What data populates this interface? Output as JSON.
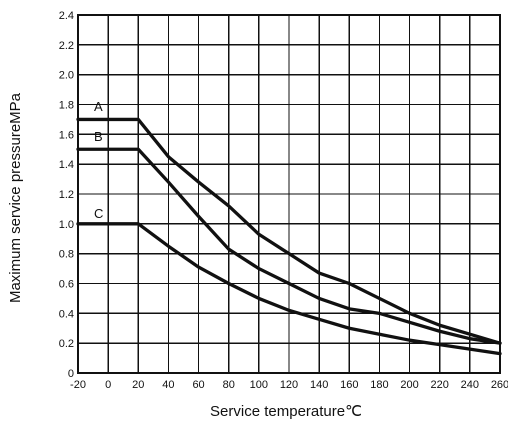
{
  "chart_data": {
    "type": "line",
    "title": "",
    "xlabel": "Service temperature℃",
    "ylabel": "Maximum service pressureMPa",
    "xlim": [
      -20,
      260
    ],
    "ylim": [
      0,
      2.4
    ],
    "x_ticks": [
      -20,
      0,
      20,
      40,
      60,
      80,
      100,
      120,
      140,
      160,
      180,
      200,
      220,
      240,
      260
    ],
    "y_ticks": [
      0,
      0.2,
      0.4,
      0.6,
      0.8,
      1.0,
      1.2,
      1.4,
      1.6,
      1.8,
      2.0,
      2.2,
      2.4
    ],
    "x_tick_labels": [
      "-20",
      "0",
      "20",
      "40",
      "60",
      "80",
      "100",
      "120",
      "140",
      "160",
      "180",
      "200",
      "220",
      "240",
      "260"
    ],
    "y_tick_labels": [
      "0",
      "0.2",
      "0.4",
      "0.6",
      "0.8",
      "1.0",
      "1.2",
      "1.4",
      "1.6",
      "1.8",
      "2.0",
      "2.2",
      "2.4"
    ],
    "grid": true,
    "series": [
      {
        "name": "A",
        "values": [
          [
            -20,
            1.7
          ],
          [
            20,
            1.7
          ],
          [
            40,
            1.45
          ],
          [
            60,
            1.28
          ],
          [
            80,
            1.12
          ],
          [
            100,
            0.93
          ],
          [
            120,
            0.8
          ],
          [
            140,
            0.67
          ],
          [
            160,
            0.6
          ],
          [
            180,
            0.5
          ],
          [
            200,
            0.4
          ],
          [
            220,
            0.32
          ],
          [
            240,
            0.26
          ],
          [
            260,
            0.2
          ]
        ]
      },
      {
        "name": "B",
        "values": [
          [
            -20,
            1.5
          ],
          [
            20,
            1.5
          ],
          [
            40,
            1.28
          ],
          [
            60,
            1.05
          ],
          [
            80,
            0.83
          ],
          [
            100,
            0.7
          ],
          [
            120,
            0.6
          ],
          [
            140,
            0.5
          ],
          [
            160,
            0.43
          ],
          [
            180,
            0.4
          ],
          [
            200,
            0.34
          ],
          [
            220,
            0.28
          ],
          [
            240,
            0.23
          ],
          [
            260,
            0.2
          ]
        ]
      },
      {
        "name": "C",
        "values": [
          [
            -20,
            1.0
          ],
          [
            20,
            1.0
          ],
          [
            40,
            0.85
          ],
          [
            60,
            0.71
          ],
          [
            80,
            0.6
          ],
          [
            100,
            0.5
          ],
          [
            120,
            0.42
          ],
          [
            140,
            0.36
          ],
          [
            160,
            0.3
          ],
          [
            180,
            0.26
          ],
          [
            200,
            0.22
          ],
          [
            220,
            0.19
          ],
          [
            240,
            0.16
          ],
          [
            260,
            0.13
          ]
        ]
      }
    ]
  }
}
